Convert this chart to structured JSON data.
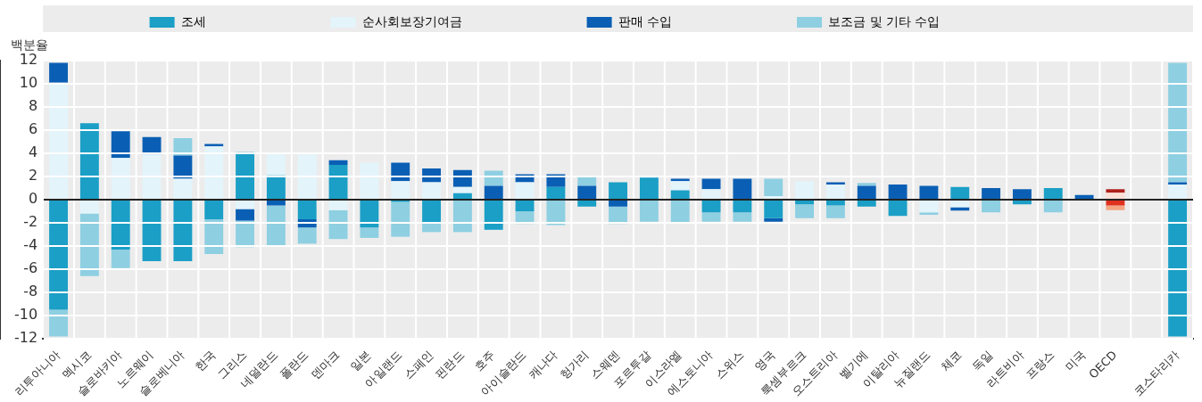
{
  "chart_data": {
    "type": "bar",
    "stacked": true,
    "ylabel": "백분율",
    "categories": [
      "리투아니아",
      "멕시코",
      "슬로바키아",
      "노르웨이",
      "슬로베니아",
      "한국",
      "그리스",
      "네덜란드",
      "폴란드",
      "덴마크",
      "일본",
      "아일랜드",
      "스페인",
      "핀란드",
      "호주",
      "아이슬란드",
      "캐나다",
      "헝가리",
      "스웨덴",
      "포르투갈",
      "이스라엘",
      "에스토니아",
      "스위스",
      "영국",
      "룩셈부르크",
      "오스트리아",
      "벨기에",
      "이탈리아",
      "뉴질랜드",
      "체코",
      "독일",
      "라트비아",
      "프랑스",
      "미국",
      "OECD",
      null,
      "코스타리카"
    ],
    "series": [
      {
        "name": "조세",
        "color": "#1b9fc6",
        "colors": [
          "#1b9fc6",
          "#1b9fc6",
          "#1b9fc6",
          "#1b9fc6",
          "#1b9fc6",
          "#1b9fc6",
          "#1b9fc6",
          "#1b9fc6",
          "#1b9fc6",
          "#1b9fc6",
          "#1b9fc6",
          "#1b9fc6",
          "#1b9fc6",
          "#1b9fc6",
          "#1b9fc6",
          "#1b9fc6",
          "#1b9fc6",
          "#1b9fc6",
          "#1b9fc6",
          "#1b9fc6",
          "#1b9fc6",
          "#1b9fc6",
          "#1b9fc6",
          "#1b9fc6",
          "#1b9fc6",
          "#1b9fc6",
          "#1b9fc6",
          "#1b9fc6",
          "#1b9fc6",
          "#1b9fc6",
          "#1b9fc6",
          "#1b9fc6",
          "#1b9fc6",
          "#1b9fc6",
          "#e0301e",
          "#1b9fc6",
          "#1b9fc6"
        ],
        "values": [
          -9.5,
          6.6,
          -4.3,
          -5.3,
          -5.3,
          -1.7,
          4.1,
          2.1,
          -1.7,
          3.0,
          -2.4,
          -0.2,
          -2.0,
          0.55,
          -2.6,
          -1.0,
          1.1,
          -0.6,
          1.5,
          1.9,
          0.8,
          -1.1,
          -1.1,
          -1.6,
          -0.4,
          -0.5,
          -0.6,
          -1.4,
          null,
          1.1,
          null,
          -0.4,
          1.0,
          null,
          -0.5,
          null,
          -11.8
        ]
      },
      {
        "name": "순사회보장기여금",
        "color": "#e3f4fb",
        "colors": [
          "#e3f4fb",
          "#e3f4fb",
          "#e3f4fb",
          "#e3f4fb",
          "#e3f4fb",
          "#e3f4fb",
          "#e3f4fb",
          "#e3f4fb",
          "#e3f4fb",
          "#e3f4fb",
          "#e3f4fb",
          "#e3f4fb",
          "#e3f4fb",
          "#e3f4fb",
          "#e3f4fb",
          "#e3f4fb",
          "#e3f4fb",
          "#e3f4fb",
          "#e3f4fb",
          "#e3f4fb",
          "#e3f4fb",
          "#e3f4fb",
          "#e3f4fb",
          "#e3f4fb",
          "#e3f4fb",
          "#e3f4fb",
          "#e3f4fb",
          "#e3f4fb",
          "#e3f4fb",
          "#e3f4fb",
          "#e3f4fb",
          "#e3f4fb",
          "#e3f4fb",
          "#e3f4fb",
          "#fbe0d8",
          "#e3f4fb",
          "#e3f4fb"
        ],
        "values": [
          10.1,
          -1.2,
          3.6,
          3.9,
          1.8,
          4.6,
          -0.8,
          1.9,
          3.9,
          -0.9,
          3.2,
          1.6,
          1.5,
          0.55,
          null,
          1.5,
          null,
          null,
          null,
          null,
          0.8,
          0.9,
          null,
          0.3,
          1.6,
          1.3,
          null,
          null,
          -1.1,
          -0.65,
          null,
          null,
          null,
          null,
          0.6,
          null,
          1.3
        ]
      },
      {
        "name": "판매 수입",
        "color": "#0a5fb4",
        "colors": [
          "#0a5fb4",
          "#0a5fb4",
          "#0a5fb4",
          "#0a5fb4",
          "#0a5fb4",
          "#0a5fb4",
          "#0a5fb4",
          "#0a5fb4",
          "#0a5fb4",
          "#0a5fb4",
          "#0a5fb4",
          "#0a5fb4",
          "#0a5fb4",
          "#0a5fb4",
          "#0a5fb4",
          "#0a5fb4",
          "#0a5fb4",
          "#0a5fb4",
          "#0a5fb4",
          "#0a5fb4",
          "#0a5fb4",
          "#0a5fb4",
          "#0a5fb4",
          "#0a5fb4",
          "#0a5fb4",
          "#0a5fb4",
          "#0a5fb4",
          "#0a5fb4",
          "#0a5fb4",
          "#0a5fb4",
          "#0a5fb4",
          "#0a5fb4",
          "#0a5fb4",
          "#0a5fb4",
          "#b0201b",
          "#0a5fb4",
          "#0a5fb4"
        ],
        "values": [
          1.7,
          null,
          2.3,
          1.5,
          2.0,
          0.2,
          -1.0,
          -0.5,
          -0.7,
          0.4,
          null,
          1.6,
          1.2,
          1.45,
          1.2,
          0.7,
          1.1,
          1.2,
          -0.6,
          null,
          0.2,
          0.9,
          1.8,
          -0.3,
          null,
          0.2,
          1.2,
          1.3,
          1.2,
          -0.3,
          1.0,
          0.9,
          null,
          0.4,
          0.3,
          null,
          0.2
        ]
      },
      {
        "name": "보조금 및 기타 수입",
        "color": "#8ecfe2",
        "colors": [
          "#8ecfe2",
          "#8ecfe2",
          "#8ecfe2",
          "#8ecfe2",
          "#8ecfe2",
          "#8ecfe2",
          "#8ecfe2",
          "#8ecfe2",
          "#8ecfe2",
          "#8ecfe2",
          "#8ecfe2",
          "#8ecfe2",
          "#8ecfe2",
          "#8ecfe2",
          "#8ecfe2",
          "#8ecfe2",
          "#8ecfe2",
          "#8ecfe2",
          "#8ecfe2",
          "#8ecfe2",
          "#8ecfe2",
          "#8ecfe2",
          "#8ecfe2",
          "#8ecfe2",
          "#8ecfe2",
          "#8ecfe2",
          "#8ecfe2",
          "#8ecfe2",
          "#8ecfe2",
          "#8ecfe2",
          "#8ecfe2",
          "#8ecfe2",
          "#8ecfe2",
          "#8ecfe2",
          "#f4a582",
          "#8ecfe2",
          "#8ecfe2"
        ],
        "values": [
          -2.3,
          -5.4,
          -1.6,
          null,
          1.5,
          -3.0,
          -2.3,
          -3.5,
          -1.4,
          -2.5,
          -0.9,
          -3.0,
          -0.8,
          -2.8,
          1.3,
          -1.1,
          -2.2,
          0.8,
          -1.5,
          -1.9,
          -2.0,
          -0.8,
          -0.8,
          1.5,
          -1.2,
          -1.1,
          0.25,
          null,
          -0.2,
          null,
          -1.1,
          null,
          -1.1,
          null,
          -0.4,
          null,
          10.3
        ]
      }
    ],
    "ylim": [
      -12,
      12
    ],
    "yticks": [
      -12,
      -10,
      -8,
      -6,
      -4,
      -2,
      0,
      2,
      4,
      6,
      8,
      10,
      12
    ],
    "grid": true,
    "legend": "top"
  }
}
